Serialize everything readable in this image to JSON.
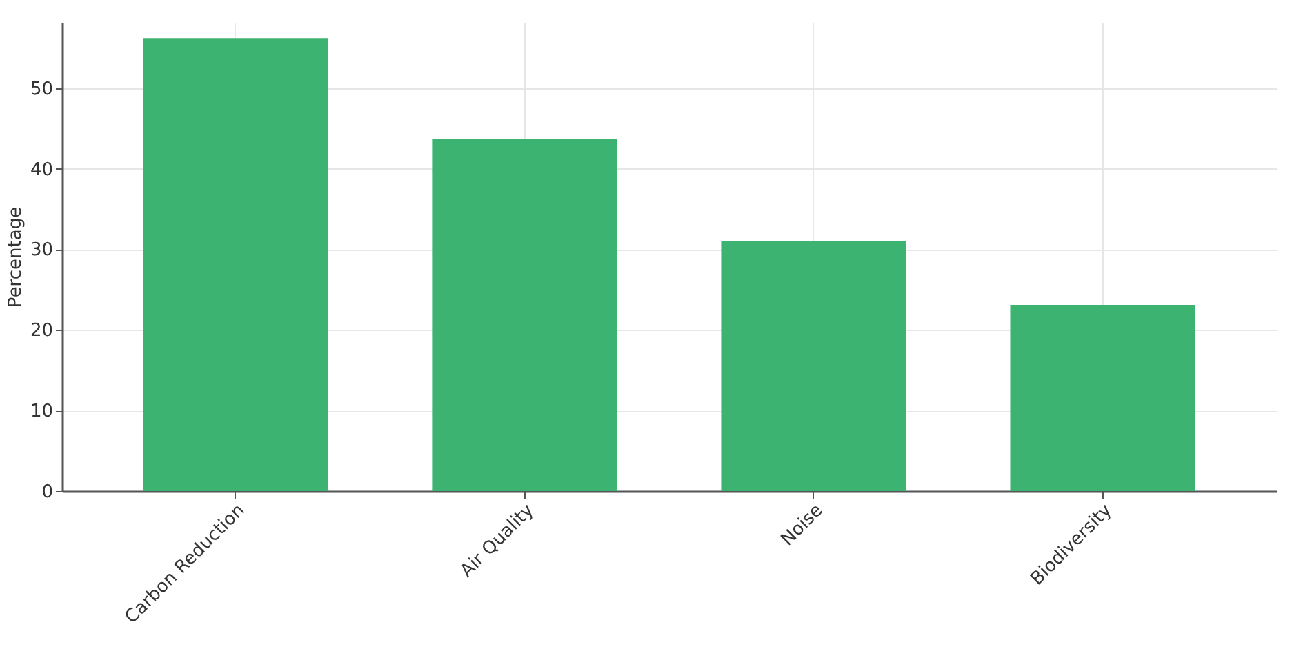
{
  "chart_data": {
    "type": "bar",
    "ylabel": "Percentage",
    "categories": [
      "Carbon Reduction",
      "Air Quality",
      "Noise",
      "Biodiversity"
    ],
    "values": [
      56.2,
      43.7,
      31.0,
      23.1
    ],
    "color": "#3cb371",
    "ylim": [
      0,
      58.2
    ],
    "yticks": [
      0,
      10,
      20,
      30,
      40,
      50
    ],
    "grid": true
  }
}
